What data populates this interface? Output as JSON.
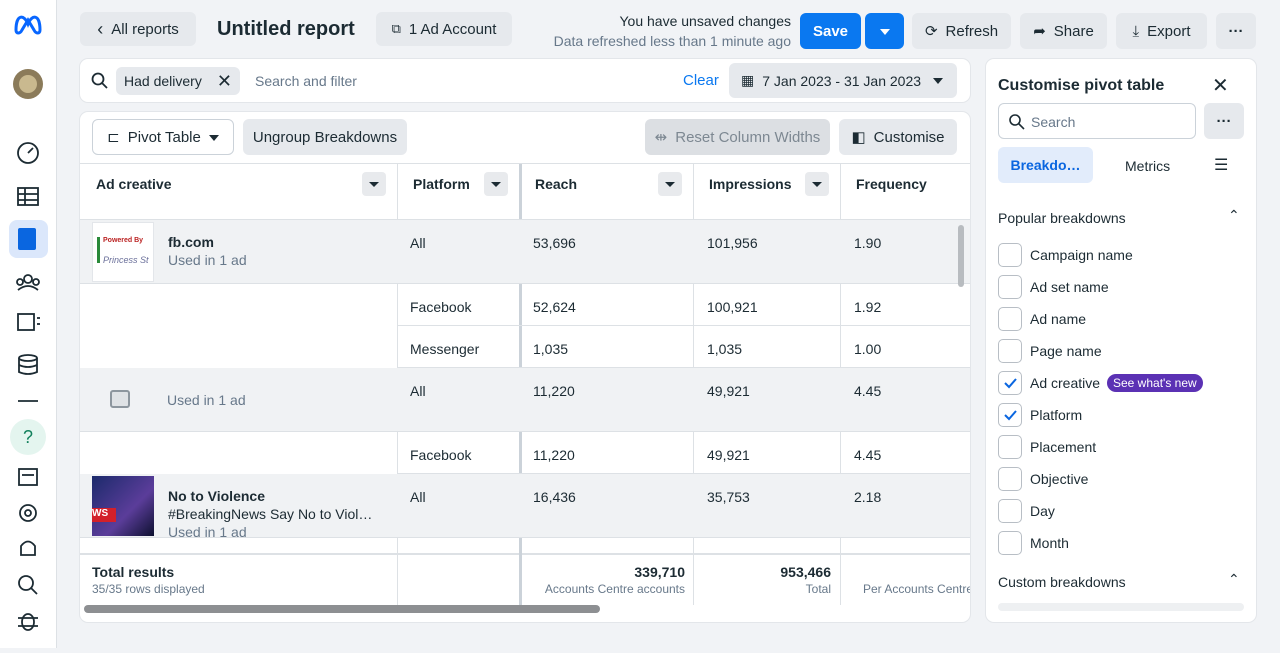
{
  "header": {
    "back": "All reports",
    "title": "Untitled report",
    "account": "1 Ad Account",
    "unsaved": "You have unsaved changes",
    "refreshed": "Data refreshed less than 1 minute ago",
    "save": "Save",
    "refresh": "Refresh",
    "share": "Share",
    "export": "Export"
  },
  "filter": {
    "chip": "Had delivery",
    "placeholder": "Search and filter",
    "clear": "Clear",
    "date_range": "7 Jan 2023 - 31 Jan 2023"
  },
  "toolbar": {
    "pivot": "Pivot Table",
    "ungroup": "Ungroup Breakdowns",
    "reset": "Reset Column Widths",
    "customise": "Customise"
  },
  "table": {
    "columns": [
      "Ad creative",
      "Platform",
      "Reach",
      "Impressions",
      "Frequency"
    ],
    "rows": [
      {
        "creative": "fb.com",
        "used": "Used in 1 ad",
        "platform": "All",
        "reach": "53,696",
        "impressions": "101,956",
        "frequency": "1.90"
      },
      {
        "platform": "Facebook",
        "reach": "52,624",
        "impressions": "100,921",
        "frequency": "1.92"
      },
      {
        "platform": "Messenger",
        "reach": "1,035",
        "impressions": "1,035",
        "frequency": "1.00"
      },
      {
        "used": "Used in 1 ad",
        "platform": "All",
        "reach": "11,220",
        "impressions": "49,921",
        "frequency": "4.45"
      },
      {
        "platform": "Facebook",
        "reach": "11,220",
        "impressions": "49,921",
        "frequency": "4.45"
      },
      {
        "creative": "No to Violence",
        "subtitle": "#BreakingNews Say No to Viol…",
        "used": "Used in 1 ad",
        "platform": "All",
        "reach": "16,436",
        "impressions": "35,753",
        "frequency": "2.18"
      }
    ],
    "total": {
      "label": "Total results",
      "rows_displayed": "35/35 rows displayed",
      "reach": "339,710",
      "reach_note": "Accounts Centre accounts",
      "impressions": "953,466",
      "impressions_note": "Total",
      "frequency_note": "Per Accounts Centre"
    }
  },
  "panel": {
    "title": "Customise pivot table",
    "search": "Search",
    "tabs": [
      "Breakdo…",
      "Metrics"
    ],
    "popular_title": "Popular breakdowns",
    "items": [
      {
        "label": "Campaign name",
        "checked": false
      },
      {
        "label": "Ad set name",
        "checked": false
      },
      {
        "label": "Ad name",
        "checked": false
      },
      {
        "label": "Page name",
        "checked": false
      },
      {
        "label": "Ad creative",
        "checked": true,
        "badge": "See what's new"
      },
      {
        "label": "Platform",
        "checked": true
      },
      {
        "label": "Placement",
        "checked": false
      },
      {
        "label": "Objective",
        "checked": false
      },
      {
        "label": "Day",
        "checked": false
      },
      {
        "label": "Month",
        "checked": false
      }
    ],
    "custom_title": "Custom breakdowns"
  }
}
